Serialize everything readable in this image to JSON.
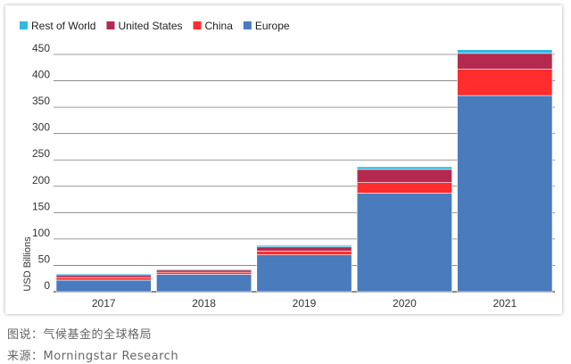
{
  "chart_data": {
    "type": "bar",
    "stacked": true,
    "categories": [
      "2017",
      "2018",
      "2019",
      "2020",
      "2021"
    ],
    "series": [
      {
        "name": "Europe",
        "color": "#4a7bbd",
        "values": [
          22,
          33,
          70,
          187,
          372
        ]
      },
      {
        "name": "China",
        "color": "#ff2d2d",
        "values": [
          5,
          4,
          7,
          20,
          50
        ]
      },
      {
        "name": "United States",
        "color": "#b5294f",
        "values": [
          5,
          4,
          8,
          25,
          30
        ]
      },
      {
        "name": "Rest of World",
        "color": "#35b8e0",
        "values": [
          2,
          2,
          3,
          5,
          7
        ]
      }
    ],
    "legend_order": [
      "Rest of World",
      "United States",
      "China",
      "Europe"
    ],
    "legend_position": "top-left",
    "ylabel": "USD Billions",
    "yticks": [
      0,
      50,
      100,
      150,
      200,
      250,
      300,
      350,
      400,
      450
    ],
    "ytick_labels": [
      "0",
      "50",
      "100",
      "150",
      "200",
      "250",
      "300",
      "350",
      "400",
      "450"
    ],
    "ylim": [
      0,
      450
    ],
    "grid": true
  },
  "captions": {
    "line1": "图说：气候基金的全球格局",
    "line2": "来源：Morningstar Research"
  }
}
